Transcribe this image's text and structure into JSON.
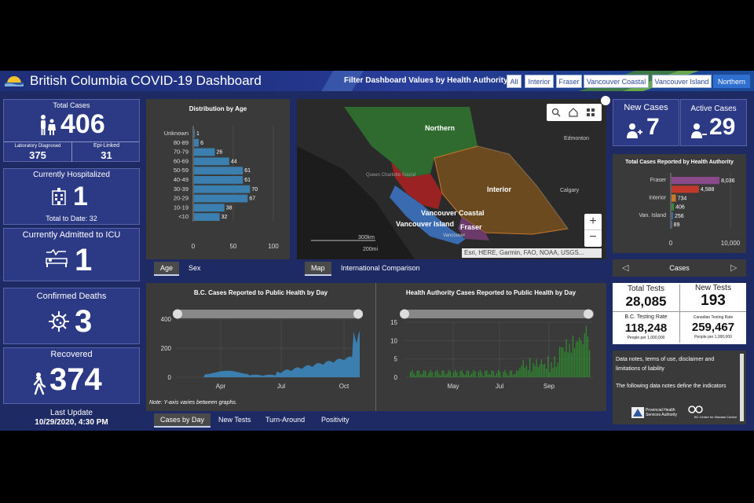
{
  "header": {
    "title": "British Columbia COVID-19 Dashboard",
    "filter_label": "Filter Dashboard Values by Health Authority:",
    "filters": [
      "All",
      "Interior",
      "Fraser",
      "Vancouver Coastal",
      "Vancouver Island",
      "Northern"
    ],
    "active_filter": "Northern"
  },
  "left": {
    "total_cases_label": "Total Cases",
    "total_cases": "406",
    "lab_label": "Laboratory Diagnosed",
    "lab_value": "375",
    "epi_label": "Epi-Linked",
    "epi_value": "31",
    "hosp_label": "Currently Hospitalized",
    "hosp_value": "1",
    "hosp_total": "Total to Date: 32",
    "icu_label": "Currently Admitted to ICU",
    "icu_value": "1",
    "deaths_label": "Confirmed Deaths",
    "deaths_value": "3",
    "recovered_label": "Recovered",
    "recovered_value": "374",
    "update_label": "Last Update",
    "update_value": "10/29/2020, 4:30 PM"
  },
  "age_chart": {
    "title": "Distribution by Age",
    "tabs": [
      "Age",
      "Sex"
    ]
  },
  "chart_data": [
    {
      "type": "bar",
      "title": "Distribution by Age",
      "categories": [
        "Unknown",
        "80-89",
        "70-79",
        "60-69",
        "50-59",
        "40-49",
        "30-39",
        "20-29",
        "10-19",
        "<10"
      ],
      "values": [
        1,
        6,
        26,
        44,
        61,
        61,
        70,
        67,
        38,
        32
      ],
      "xlim": [
        0,
        100
      ],
      "xticks": [
        "0",
        "50",
        "100"
      ]
    },
    {
      "type": "bar",
      "title": "Total Cases Reported by Health Authority",
      "categories": [
        "Fraser",
        "",
        "Interior",
        "",
        "Van. Island",
        ""
      ],
      "values": [
        8036,
        4588,
        734,
        406,
        256,
        89
      ],
      "colors": [
        "#8a4a8a",
        "#c0392b",
        "#c8782a",
        "#3a8a3a",
        "#3a6ab0",
        "#3a6ab0"
      ],
      "xlabel": "Cases",
      "xlim": [
        0,
        10000
      ],
      "xticks": [
        "0",
        "10,000"
      ]
    },
    {
      "type": "area",
      "title": "B.C. Cases Reported to Public Health by Day",
      "xticks": [
        "Apr",
        "Jul",
        "Oct"
      ],
      "yticks": [
        "0",
        "200",
        "400"
      ],
      "ylim": [
        0,
        400
      ]
    },
    {
      "type": "bar",
      "title": "Health Authority Cases Reported to Public Health by Day",
      "xticks": [
        "May",
        "Jul",
        "Sep"
      ],
      "yticks": [
        "0",
        "5",
        "10",
        "15"
      ],
      "ylim": [
        0,
        15
      ]
    }
  ],
  "map": {
    "labels": [
      "Northern",
      "Edmonton",
      "Queen Charlotte Sound",
      "Interior",
      "Calgary",
      "Vancouver Coastal",
      "Vancouver Island",
      "Fraser",
      "Vancouver"
    ],
    "scale_km": "300km",
    "scale_mi": "200mi",
    "attribution": "Esri, HERE, Garmin, FAO, NOAA, USGS...",
    "tabs": [
      "Map",
      "International Comparison"
    ]
  },
  "right": {
    "new_cases_label": "New Cases",
    "new_cases": "7",
    "active_cases_label": "Active Cases",
    "active_cases": "29",
    "ha_chart_title": "Total Cases Reported by Health Authority",
    "ha_nav_label": "Cases",
    "total_tests_label": "Total Tests",
    "total_tests": "28,085",
    "new_tests_label": "New Tests",
    "new_tests": "193",
    "bc_rate_label": "B.C. Testing Rate",
    "bc_rate": "118,248",
    "bc_rate_unit": "People per 1,000,000",
    "can_rate_label": "Canadian Testing Rate",
    "can_rate": "259,467",
    "can_rate_unit": "People per 1,000,000",
    "notes_title": "Data notes, terms of use, disclaimer and limitations of liability",
    "notes_body": "The following data notes define the indicators",
    "logo1": "Provincial Health Services Authority",
    "logo2": "BC Centre for Disease Control"
  },
  "bottom": {
    "bc_chart_title": "B.C. Cases Reported to Public Health by Day",
    "ha_chart_title": "Health Authority Cases Reported to Public Health by Day",
    "note": "Note: Y-axis varies between graphs.",
    "tabs": [
      "Cases by Day",
      "New Tests",
      "Turn-Around",
      "Positivity"
    ]
  },
  "colors": {
    "background": "#1e2a63",
    "card": "#2c3a85",
    "panel": "#3a3a3a",
    "bc_series": "#3a7fb0",
    "ha_series": "#2e8b2e"
  }
}
